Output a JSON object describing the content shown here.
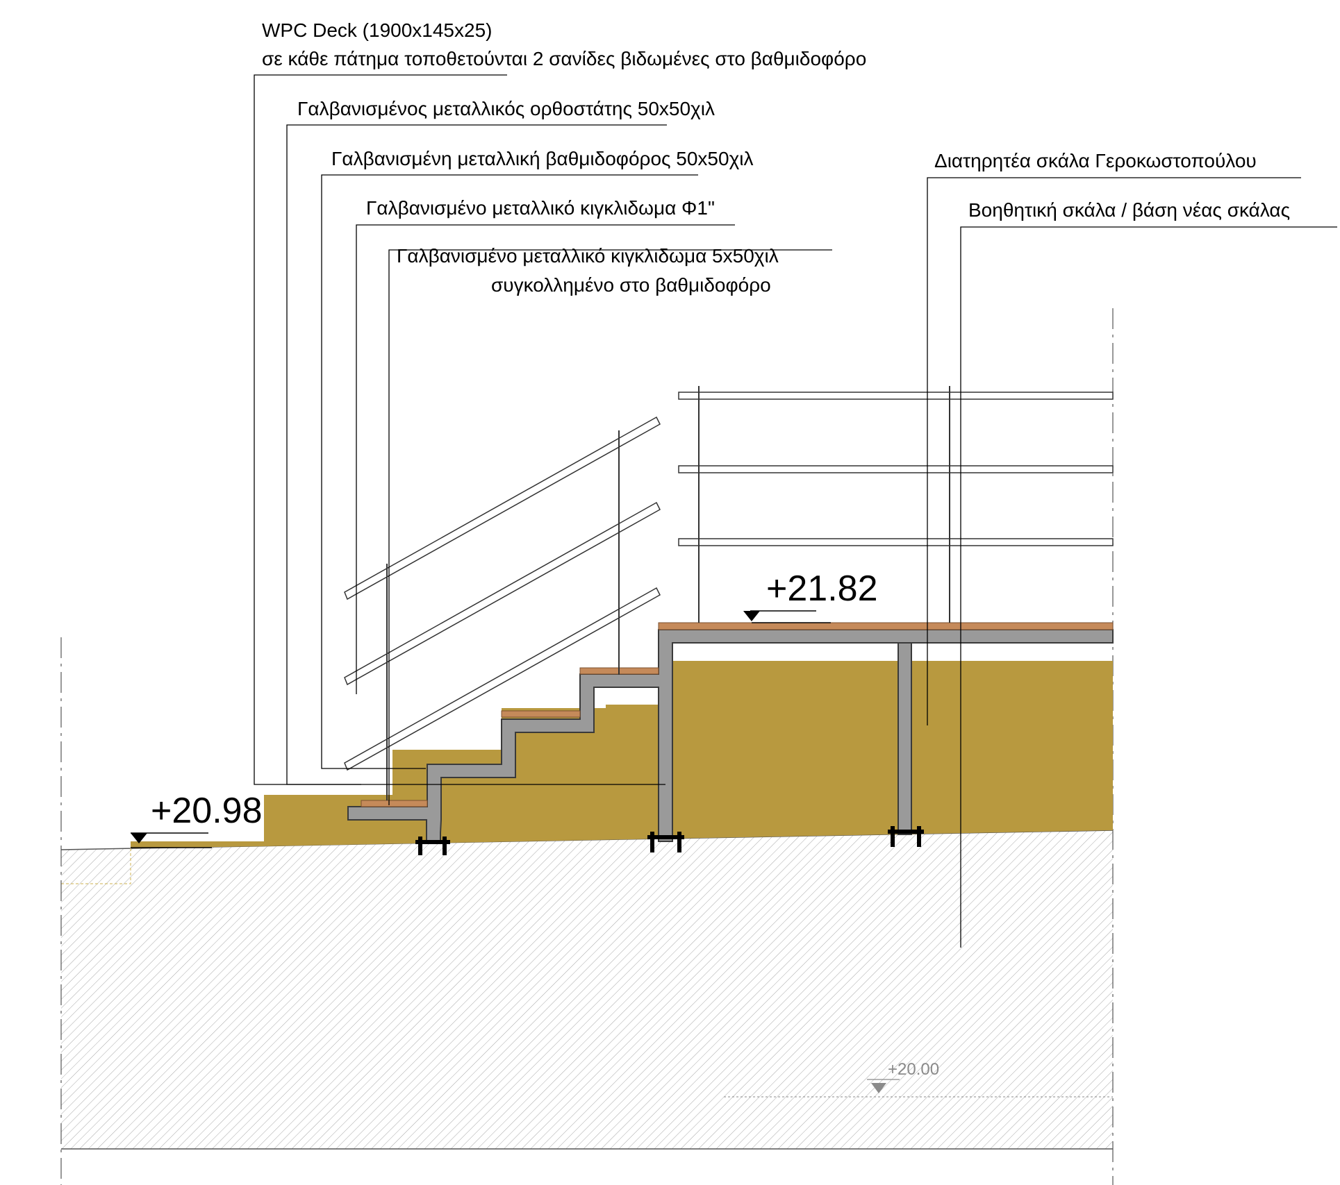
{
  "annotations": {
    "wpc_deck": {
      "line1": "WPC Deck (1900x145x25)",
      "line2": "σε κάθε πάτημα τοποθετούνται 2 σανίδες βιδωμένες στο βαθμιδοφόρο"
    },
    "upright": "Γαλβανισμένος μεταλλικός ορθοστάτης 50x50χιλ",
    "stringer": "Γαλβανισμένη μεταλλική βαθμιδοφόρος 50x50χιλ",
    "railing_pipe": "Γαλβανισμένο μεταλλικό κιγκλιδωμα Φ1\"",
    "railing_flat": {
      "line1": "Γαλβανισμένο μεταλλικό κιγκλιδωμα 5x50χιλ",
      "line2": "συγκολλημένο στο βαθμιδοφόρο"
    },
    "preserved_stair": "Διατηρητέα σκάλα Γεροκωστοπούλου",
    "auxiliary_stair": "Βοηθητική σκάλα / βάση νέας σκάλας"
  },
  "levels": {
    "lower": "+20.98",
    "upper": "+21.82",
    "reference": "+20.00"
  },
  "colors": {
    "fill": "#b8993f",
    "steel": "#9a9a9a",
    "deck": "#c58a5a",
    "hatch": "#9a9a9a",
    "line": "#000000"
  }
}
